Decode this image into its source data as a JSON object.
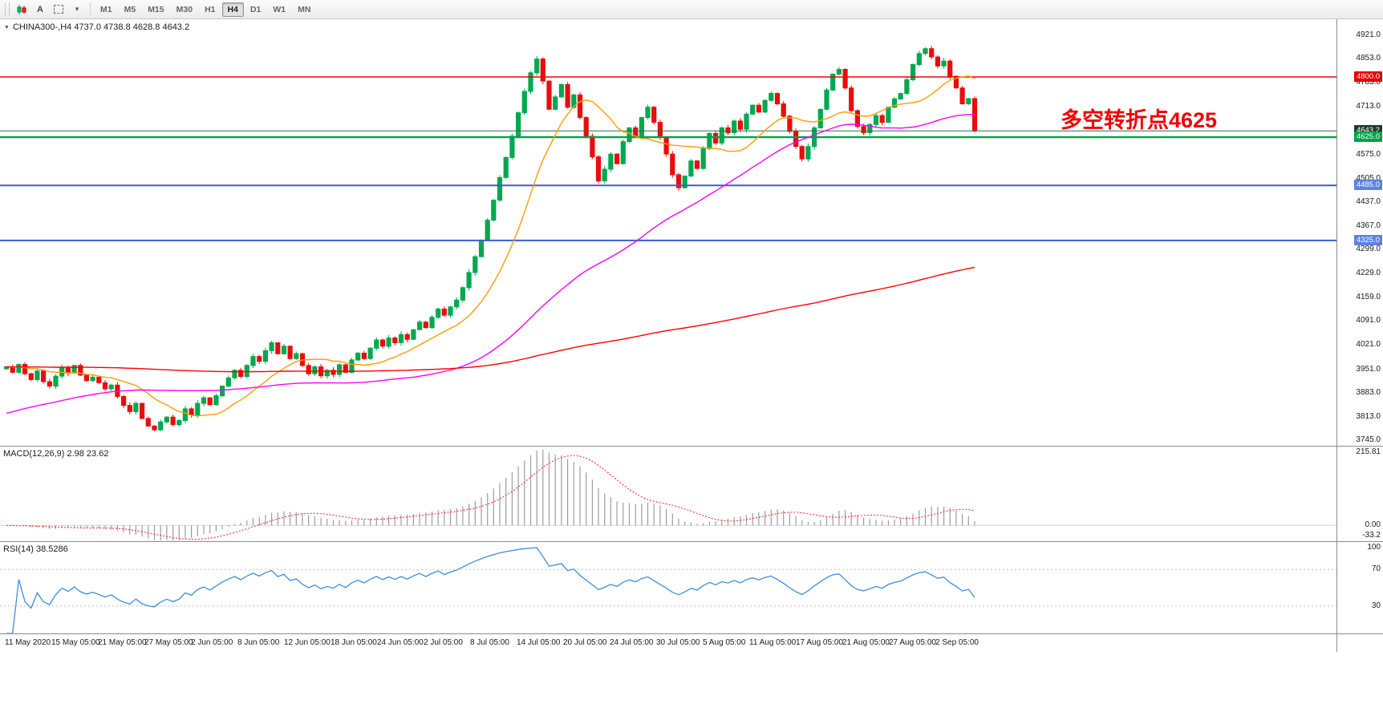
{
  "icons": {
    "collapse": "▼",
    "dropdown": "▾"
  },
  "toolbar": {
    "tool_buttons": [
      {
        "name": "chart-type-button",
        "type": "candles"
      },
      {
        "name": "text-tool-button",
        "type": "label",
        "label": "A"
      },
      {
        "name": "frame-tool-button",
        "type": "frame"
      },
      {
        "name": "cursor-dropdown-button",
        "type": "dropdown"
      }
    ],
    "timeframes": [
      "M1",
      "M5",
      "M15",
      "M30",
      "H1",
      "H4",
      "D1",
      "W1",
      "MN"
    ],
    "active_timeframe": "H4"
  },
  "chart": {
    "symbol_info": "CHINA300-,H4  4737.0 4738.8 4628.8 4643.2",
    "annotation": {
      "text": "多空转折点4625",
      "color": "#f00000"
    },
    "colors": {
      "up": "#00a94f",
      "down": "#ea0c0c",
      "hist": "#9c9c9c",
      "signal": "#ff2020",
      "rsi": "#3f8edc",
      "level": "#c0c0c0"
    },
    "hlines": [
      {
        "p": 4800,
        "color": "#f20000",
        "w": 1.4
      },
      {
        "p": 4643.2,
        "color": "#356b4d",
        "w": 1
      },
      {
        "p": 4625,
        "color": "#00a14b",
        "w": 2.4
      },
      {
        "p": 4485,
        "color": "#3b5cd6",
        "w": 2
      },
      {
        "p": 4325,
        "color": "#3b5cd6",
        "w": 2
      }
    ],
    "price_axis": {
      "ticks": [
        {
          "p": 4921,
          "t": "4921.0"
        },
        {
          "p": 4853,
          "t": "4853.0"
        },
        {
          "p": 4783,
          "t": "4783.0"
        },
        {
          "p": 4713,
          "t": "4713.0"
        },
        {
          "p": 4575,
          "t": "4575.0"
        },
        {
          "p": 4505,
          "t": "4505.0"
        },
        {
          "p": 4437,
          "t": "4437.0"
        },
        {
          "p": 4367,
          "t": "4367.0"
        },
        {
          "p": 4299,
          "t": "4299.0"
        },
        {
          "p": 4229,
          "t": "4229.0"
        },
        {
          "p": 4159,
          "t": "4159.0"
        },
        {
          "p": 4091,
          "t": "4091.0"
        },
        {
          "p": 4021,
          "t": "4021.0"
        },
        {
          "p": 3951,
          "t": "3951.0"
        },
        {
          "p": 3883,
          "t": "3883.0"
        },
        {
          "p": 3813,
          "t": "3813.0"
        },
        {
          "p": 3745,
          "t": "3745.0"
        }
      ],
      "badges": [
        {
          "p": 4800,
          "t": "4800.0",
          "bg": "#e60000"
        },
        {
          "p": 4643.2,
          "t": "4643.2",
          "bg": "#1c3b2a"
        },
        {
          "p": 4625,
          "t": "4625.0",
          "bg": "#00a14b"
        },
        {
          "p": 4485,
          "t": "4485.0",
          "bg": "#5b83e0"
        },
        {
          "p": 4325,
          "t": "4325.0",
          "bg": "#5b83e0"
        }
      ]
    }
  },
  "chart_data": {
    "type": "candlestick",
    "symbol": "CHINA300-",
    "timeframe": "H4",
    "ohlc_last": {
      "open": 4737.0,
      "high": 4738.8,
      "low": 4628.8,
      "close": 4643.2
    },
    "y_range": [
      3745,
      4921
    ],
    "closes": [
      3958,
      3942,
      3965,
      3938,
      3921,
      3946,
      3915,
      3902,
      3931,
      3956,
      3940,
      3962,
      3934,
      3918,
      3928,
      3912,
      3894,
      3905,
      3872,
      3846,
      3828,
      3852,
      3808,
      3786,
      3775,
      3798,
      3812,
      3790,
      3802,
      3836,
      3818,
      3852,
      3868,
      3848,
      3874,
      3902,
      3926,
      3948,
      3930,
      3962,
      3988,
      3974,
      4005,
      4028,
      3996,
      4018,
      3982,
      3996,
      3962,
      3938,
      3958,
      3932,
      3948,
      3936,
      3964,
      3942,
      3978,
      3998,
      3982,
      4012,
      4036,
      4018,
      4042,
      4028,
      4052,
      4038,
      4066,
      4088,
      4072,
      4102,
      4126,
      4108,
      4132,
      4152,
      4188,
      4232,
      4278,
      4326,
      4384,
      4442,
      4508,
      4566,
      4628,
      4696,
      4758,
      4812,
      4852,
      4788,
      4706,
      4742,
      4778,
      4712,
      4748,
      4682,
      4628,
      4568,
      4498,
      4532,
      4576,
      4548,
      4612,
      4652,
      4628,
      4682,
      4712,
      4668,
      4624,
      4576,
      4516,
      4478,
      4512,
      4556,
      4534,
      4592,
      4636,
      4608,
      4652,
      4638,
      4672,
      4648,
      4692,
      4718,
      4698,
      4732,
      4752,
      4722,
      4686,
      4642,
      4598,
      4562,
      4598,
      4652,
      4706,
      4762,
      4808,
      4822,
      4768,
      4702,
      4656,
      4638,
      4662,
      4688,
      4668,
      4712,
      4736,
      4752,
      4792,
      4836,
      4868,
      4882,
      4858,
      4832,
      4846,
      4802,
      4768,
      4722,
      4737,
      4643.2
    ],
    "moving_averages": [
      {
        "name": "fast",
        "period": 13,
        "color": "#ff9d00",
        "backslope": 0
      },
      {
        "name": "mid",
        "period": 55,
        "color": "#ff00ff",
        "backslope": 5
      },
      {
        "name": "slow",
        "period": 200,
        "color": "#ff0000",
        "backslope": 0
      }
    ],
    "indicators": {
      "macd": {
        "label": "MACD(12,26,9) 2.98 23.62",
        "params": [
          12,
          26,
          9
        ],
        "range": [
          -45,
          225
        ],
        "axis": [
          {
            "v": 215.81,
            "t": "215.81"
          },
          {
            "v": 0,
            "t": "0.00"
          },
          {
            "v": -33.2,
            "t": "-33.2"
          }
        ]
      },
      "rsi": {
        "label": "RSI(14) 38.5286",
        "period": 14,
        "levels": [
          70,
          30
        ],
        "range": [
          0,
          100
        ],
        "axis": [
          {
            "v": 100,
            "t": "100"
          },
          {
            "v": 70,
            "t": "70"
          },
          {
            "v": 30,
            "t": "30"
          }
        ]
      }
    },
    "time_labels": [
      "11 May 2020",
      "15 May 05:00",
      "21 May 05:00",
      "27 May 05:00",
      "2 Jun 05:00",
      "8 Jun 05:00",
      "12 Jun 05:00",
      "18 Jun 05:00",
      "24 Jun 05:00",
      "2 Jul 05:00",
      "8 Jul 05:00",
      "14 Jul 05:00",
      "20 Jul 05:00",
      "24 Jul 05:00",
      "30 Jul 05:00",
      "5 Aug 05:00",
      "11 Aug 05:00",
      "17 Aug 05:00",
      "21 Aug 05:00",
      "27 Aug 05:00",
      "2 Sep 05:00"
    ]
  }
}
